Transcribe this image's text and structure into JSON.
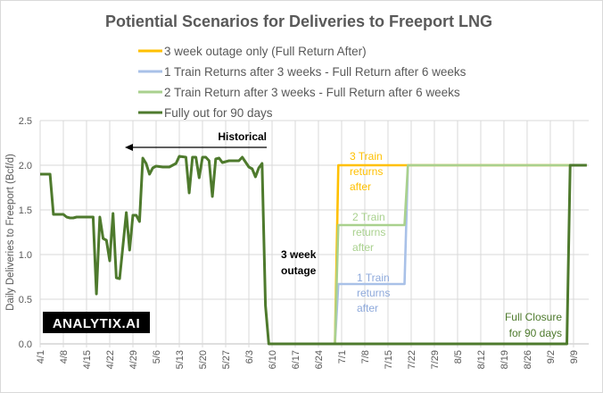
{
  "chart_data": {
    "type": "line",
    "title": "Potiential Scenarios for Deliveries to Freeport LNG",
    "xlabel": "",
    "ylabel": "Daily Deliveries to Freeport (Bcf/d)",
    "ylim": [
      0,
      2.5
    ],
    "yticks": [
      "0.0",
      "0.5",
      "1.0",
      "1.5",
      "2.0",
      "2.5"
    ],
    "xlim": [
      "4/1",
      "9/13"
    ],
    "xticks": [
      "4/1",
      "4/8",
      "4/15",
      "4/22",
      "4/29",
      "5/6",
      "5/13",
      "5/20",
      "5/27",
      "6/3",
      "6/10",
      "6/17",
      "6/24",
      "7/1",
      "7/8",
      "7/15",
      "7/22",
      "7/29",
      "8/5",
      "8/12",
      "8/19",
      "8/26",
      "9/2",
      "9/9"
    ],
    "grid": true,
    "legend_position": "top",
    "series": [
      {
        "name": "3 week outage only (Full Return After)",
        "color": "#FFC000",
        "points": [
          [
            "6/29",
            0
          ],
          [
            "6/30",
            2.0
          ],
          [
            "9/13",
            2.0
          ]
        ]
      },
      {
        "name": "1 Train Returns after 3 weeks - Full Return after 6 weeks",
        "color": "#A9C1E8",
        "points": [
          [
            "6/29",
            0
          ],
          [
            "6/30",
            0.67
          ],
          [
            "7/20",
            0.67
          ],
          [
            "7/21",
            2.0
          ],
          [
            "9/13",
            2.0
          ]
        ]
      },
      {
        "name": "2 Train Return after 3 weeks - Full Return after 6 weeks",
        "color": "#A9D18E",
        "points": [
          [
            "6/29",
            0
          ],
          [
            "6/30",
            1.33
          ],
          [
            "7/20",
            1.33
          ],
          [
            "7/21",
            2.0
          ],
          [
            "9/13",
            2.0
          ]
        ]
      },
      {
        "name": "Fully out for 90 days",
        "color": "#4E7A2D",
        "points": [
          [
            "4/1",
            1.9
          ],
          [
            "4/2",
            1.9
          ],
          [
            "4/4",
            1.9
          ],
          [
            "4/5",
            1.45
          ],
          [
            "4/6",
            1.45
          ],
          [
            "4/7",
            1.45
          ],
          [
            "4/8",
            1.45
          ],
          [
            "4/9",
            1.42
          ],
          [
            "4/10",
            1.41
          ],
          [
            "4/11",
            1.41
          ],
          [
            "4/12",
            1.42
          ],
          [
            "4/13",
            1.42
          ],
          [
            "4/14",
            1.42
          ],
          [
            "4/15",
            1.42
          ],
          [
            "4/17",
            1.42
          ],
          [
            "4/18",
            0.56
          ],
          [
            "4/19",
            1.42
          ],
          [
            "4/20",
            1.18
          ],
          [
            "4/21",
            1.16
          ],
          [
            "4/22",
            0.93
          ],
          [
            "4/23",
            1.46
          ],
          [
            "4/24",
            0.74
          ],
          [
            "4/25",
            0.73
          ],
          [
            "4/27",
            1.47
          ],
          [
            "4/28",
            1.05
          ],
          [
            "4/29",
            1.44
          ],
          [
            "4/30",
            1.44
          ],
          [
            "5/1",
            1.37
          ],
          [
            "5/2",
            2.08
          ],
          [
            "5/3",
            2.02
          ],
          [
            "5/4",
            1.9
          ],
          [
            "5/5",
            1.97
          ],
          [
            "5/6",
            1.99
          ],
          [
            "5/8",
            1.98
          ],
          [
            "5/10",
            1.98
          ],
          [
            "5/12",
            2.02
          ],
          [
            "5/13",
            2.1
          ],
          [
            "5/15",
            2.09
          ],
          [
            "5/16",
            1.69
          ],
          [
            "5/17",
            2.09
          ],
          [
            "5/18",
            2.09
          ],
          [
            "5/19",
            1.86
          ],
          [
            "5/20",
            2.09
          ],
          [
            "5/21",
            2.09
          ],
          [
            "5/22",
            2.05
          ],
          [
            "5/23",
            1.65
          ],
          [
            "5/24",
            2.07
          ],
          [
            "5/25",
            2.08
          ],
          [
            "5/26",
            2.03
          ],
          [
            "5/27",
            2.04
          ],
          [
            "5/28",
            2.05
          ],
          [
            "5/31",
            2.05
          ],
          [
            "6/1",
            2.09
          ],
          [
            "6/3",
            1.98
          ],
          [
            "6/4",
            1.96
          ],
          [
            "6/5",
            1.87
          ],
          [
            "6/6",
            1.97
          ],
          [
            "6/7",
            2.02
          ],
          [
            "6/8",
            0.43
          ],
          [
            "6/9",
            0
          ],
          [
            "9/7",
            0
          ],
          [
            "9/8",
            2.0
          ],
          [
            "9/13",
            2.0
          ]
        ]
      }
    ],
    "annotations": [
      {
        "text": "Historical",
        "style": "bold-arrow-left",
        "color": "#000000"
      },
      {
        "text": "3 week outage",
        "color": "#000000"
      },
      {
        "text": "3 Train returns after",
        "color": "#FFC000"
      },
      {
        "text": "2 Train returns after",
        "color": "#A9D18E"
      },
      {
        "text": "1 Train returns after",
        "color": "#8EA9DB"
      },
      {
        "text": "Full Closure for 90 days",
        "color": "#4E7A2D"
      }
    ]
  },
  "annotation_lines": {
    "historical": "Historical",
    "outage": [
      "3 week",
      "outage"
    ],
    "train3": [
      "3 Train",
      "returns",
      "after"
    ],
    "train2": [
      "2 Train",
      "returns",
      "after"
    ],
    "train1": [
      "1 Train",
      "returns",
      "after"
    ],
    "closure": [
      "Full Closure",
      "for 90 days"
    ]
  },
  "logo": {
    "text": "ANALYTIX.AI"
  }
}
